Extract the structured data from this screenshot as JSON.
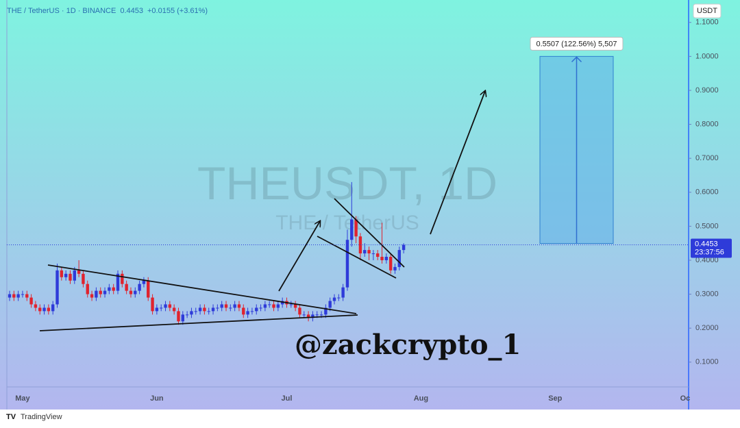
{
  "chart_data": {
    "type": "candlestick",
    "title": "THE / TetherUS · 1D · BINANCE",
    "last_price": 0.4453,
    "change": "+0.0155 (+3.61%)",
    "currency": "USDT",
    "countdown": "23:37:56",
    "watermark_title": "THEUSDT, 1D",
    "watermark_subtitle": "THE / TetherUS",
    "annotation": "@zackcrypto_1",
    "brand": "TradingView",
    "up_color": "#2e3bd9",
    "down_color": "#e0232e",
    "measure": {
      "low": 0.4493,
      "high": 1.0,
      "label": "0.5507 (122.56%) 5,507"
    },
    "ylim": [
      0.027,
      1.166
    ],
    "yticks": [
      {
        "value": 0.1,
        "label": "0.1000"
      },
      {
        "value": 0.2,
        "label": "0.2000"
      },
      {
        "value": 0.3,
        "label": "0.3000"
      },
      {
        "value": 0.4,
        "label": "0.4000"
      },
      {
        "value": 0.5,
        "label": "0.5000"
      },
      {
        "value": 0.6,
        "label": "0.6000"
      },
      {
        "value": 0.7,
        "label": "0.7000"
      },
      {
        "value": 0.8,
        "label": "0.8000"
      },
      {
        "value": 0.9,
        "label": "0.9000"
      },
      {
        "value": 1.0,
        "label": "1.0000"
      },
      {
        "value": 1.1,
        "label": "1.1000"
      }
    ],
    "categories": [
      null,
      null,
      null,
      "May",
      null,
      null,
      null,
      null,
      null,
      null,
      null,
      null,
      null,
      null,
      null,
      null,
      null,
      null,
      null,
      null,
      null,
      null,
      null,
      null,
      null,
      null,
      null,
      null,
      null,
      null,
      null,
      null,
      null,
      null,
      "Jun",
      null,
      null,
      null,
      null,
      null,
      null,
      null,
      null,
      null,
      null,
      null,
      null,
      null,
      null,
      null,
      null,
      null,
      null,
      null,
      null,
      null,
      null,
      null,
      null,
      null,
      null,
      null,
      null,
      null,
      "Jul",
      null,
      null,
      null,
      null,
      null,
      null,
      null,
      null,
      null,
      null,
      null,
      null,
      null,
      null,
      null,
      null,
      null,
      null,
      null,
      null,
      null,
      null,
      null,
      null,
      null,
      null,
      null,
      null,
      null,
      null,
      "Aug",
      null,
      null,
      null,
      null,
      null,
      null,
      null,
      null,
      null,
      null,
      null,
      null,
      null,
      null,
      null,
      null,
      null,
      null,
      null,
      null,
      null,
      null,
      null,
      null,
      null,
      null,
      null,
      null,
      null,
      null,
      "Sep",
      null,
      null,
      null,
      null,
      null,
      null,
      null,
      null,
      null,
      null,
      null,
      null,
      null,
      null,
      null,
      null,
      null,
      null,
      null,
      null,
      null,
      null,
      null,
      null,
      null,
      null,
      null,
      null,
      null,
      "Oc"
    ],
    "open": [
      0.29,
      0.3,
      0.29,
      0.3,
      0.3,
      0.29,
      0.27,
      0.26,
      0.25,
      0.26,
      0.25,
      0.27,
      0.37,
      0.35,
      0.36,
      0.34,
      0.37,
      0.36,
      0.33,
      0.3,
      0.29,
      0.31,
      0.3,
      0.31,
      0.32,
      0.31,
      0.36,
      0.33,
      0.31,
      0.3,
      0.31,
      0.33,
      0.34,
      0.29,
      0.25,
      0.26,
      0.26,
      0.27,
      0.26,
      0.25,
      0.22,
      0.24,
      0.24,
      0.25,
      0.25,
      0.26,
      0.25,
      0.25,
      0.26,
      0.26,
      0.27,
      0.26,
      0.26,
      0.27,
      0.26,
      0.24,
      0.25,
      0.25,
      0.26,
      0.26,
      0.27,
      0.27,
      0.26,
      0.27,
      0.28,
      0.27,
      0.27,
      0.26,
      0.24,
      0.24,
      0.23,
      0.24,
      0.24,
      0.24,
      0.26,
      0.28,
      0.29,
      0.29,
      0.32,
      0.46,
      0.52,
      0.47,
      0.42,
      0.43,
      0.42,
      0.42,
      0.41,
      0.4,
      0.41,
      0.37,
      0.38,
      0.43,
      null,
      null,
      null,
      null,
      null,
      null,
      null,
      null,
      null,
      null,
      null,
      null,
      null,
      null,
      null,
      null,
      null,
      null,
      null,
      null,
      null,
      null,
      null,
      null,
      null,
      null,
      null,
      null,
      null,
      null,
      null,
      null,
      null,
      null,
      null,
      null,
      null,
      null,
      null,
      null,
      null,
      null,
      null,
      null,
      null,
      null,
      null,
      null,
      null,
      null,
      null,
      null,
      null,
      null,
      null,
      null,
      null,
      null,
      null,
      null,
      null,
      null,
      null,
      null,
      null
    ],
    "high": [
      0.31,
      0.31,
      0.31,
      0.31,
      0.31,
      0.3,
      0.28,
      0.27,
      0.27,
      0.27,
      0.28,
      0.39,
      0.38,
      0.37,
      0.37,
      0.38,
      0.4,
      0.37,
      0.34,
      0.31,
      0.32,
      0.32,
      0.32,
      0.33,
      0.33,
      0.37,
      0.37,
      0.34,
      0.32,
      0.32,
      0.34,
      0.35,
      0.35,
      0.3,
      0.27,
      0.27,
      0.28,
      0.28,
      0.27,
      0.26,
      0.25,
      0.25,
      0.26,
      0.26,
      0.27,
      0.27,
      0.26,
      0.27,
      0.27,
      0.28,
      0.28,
      0.27,
      0.28,
      0.28,
      0.27,
      0.26,
      0.26,
      0.27,
      0.27,
      0.28,
      0.28,
      0.28,
      0.28,
      0.29,
      0.29,
      0.28,
      0.28,
      0.27,
      0.25,
      0.25,
      0.25,
      0.25,
      0.25,
      0.27,
      0.29,
      0.3,
      0.3,
      0.33,
      0.49,
      0.63,
      0.53,
      0.48,
      0.45,
      0.44,
      0.43,
      0.43,
      0.51,
      0.42,
      0.42,
      0.39,
      0.44,
      0.45,
      null,
      null,
      null,
      null,
      null,
      null,
      null,
      null,
      null,
      null,
      null,
      null,
      null,
      null,
      null,
      null,
      null,
      null,
      null,
      null,
      null,
      null,
      null,
      null,
      null,
      null,
      null,
      null,
      null,
      null,
      null,
      null,
      null,
      null,
      null,
      null,
      null,
      null,
      null,
      null,
      null,
      null,
      null,
      null,
      null,
      null,
      null,
      null,
      null,
      null,
      null,
      null,
      null,
      null,
      null,
      null,
      null,
      null,
      null,
      null,
      null,
      null,
      null,
      null,
      null
    ],
    "low": [
      0.28,
      0.28,
      0.28,
      0.29,
      0.28,
      0.26,
      0.25,
      0.24,
      0.24,
      0.24,
      0.24,
      0.26,
      0.34,
      0.34,
      0.33,
      0.33,
      0.35,
      0.32,
      0.29,
      0.28,
      0.28,
      0.29,
      0.29,
      0.3,
      0.3,
      0.3,
      0.32,
      0.3,
      0.29,
      0.29,
      0.3,
      0.32,
      0.28,
      0.24,
      0.24,
      0.25,
      0.25,
      0.25,
      0.24,
      0.21,
      0.21,
      0.23,
      0.23,
      0.24,
      0.24,
      0.24,
      0.24,
      0.24,
      0.25,
      0.25,
      0.25,
      0.25,
      0.25,
      0.25,
      0.23,
      0.23,
      0.24,
      0.24,
      0.25,
      0.25,
      0.26,
      0.25,
      0.25,
      0.26,
      0.26,
      0.26,
      0.25,
      0.23,
      0.23,
      0.22,
      0.22,
      0.23,
      0.23,
      0.23,
      0.25,
      0.27,
      0.28,
      0.28,
      0.31,
      0.44,
      0.45,
      0.4,
      0.41,
      0.4,
      0.4,
      0.4,
      0.39,
      0.39,
      0.36,
      0.36,
      0.37,
      0.42,
      null,
      null,
      null,
      null,
      null,
      null,
      null,
      null,
      null,
      null,
      null,
      null,
      null,
      null,
      null,
      null,
      null,
      null,
      null,
      null,
      null,
      null,
      null,
      null,
      null,
      null,
      null,
      null,
      null,
      null,
      null,
      null,
      null,
      null,
      null,
      null,
      null,
      null,
      null,
      null,
      null,
      null,
      null,
      null,
      null,
      null,
      null,
      null,
      null,
      null,
      null,
      null,
      null,
      null,
      null,
      null,
      null,
      null,
      null,
      null,
      null,
      null,
      null,
      null,
      null
    ],
    "close": [
      0.3,
      0.29,
      0.3,
      0.3,
      0.29,
      0.27,
      0.26,
      0.25,
      0.26,
      0.25,
      0.27,
      0.37,
      0.35,
      0.36,
      0.34,
      0.37,
      0.36,
      0.33,
      0.3,
      0.29,
      0.31,
      0.3,
      0.31,
      0.32,
      0.31,
      0.36,
      0.33,
      0.31,
      0.3,
      0.31,
      0.33,
      0.34,
      0.29,
      0.25,
      0.26,
      0.26,
      0.27,
      0.26,
      0.25,
      0.22,
      0.24,
      0.24,
      0.25,
      0.25,
      0.26,
      0.25,
      0.25,
      0.26,
      0.26,
      0.27,
      0.26,
      0.26,
      0.27,
      0.26,
      0.24,
      0.25,
      0.25,
      0.26,
      0.26,
      0.27,
      0.27,
      0.26,
      0.27,
      0.28,
      0.27,
      0.27,
      0.26,
      0.24,
      0.24,
      0.23,
      0.24,
      0.24,
      0.24,
      0.26,
      0.28,
      0.29,
      0.29,
      0.32,
      0.46,
      0.52,
      0.47,
      0.42,
      0.43,
      0.42,
      0.42,
      0.41,
      0.4,
      0.41,
      0.37,
      0.38,
      0.43,
      0.4453,
      null,
      null,
      null,
      null,
      null,
      null,
      null,
      null,
      null,
      null,
      null,
      null,
      null,
      null,
      null,
      null,
      null,
      null,
      null,
      null,
      null,
      null,
      null,
      null,
      null,
      null,
      null,
      null,
      null,
      null,
      null,
      null,
      null,
      null,
      null,
      null,
      null,
      null,
      null,
      null,
      null,
      null,
      null,
      null,
      null,
      null,
      null,
      null,
      null,
      null,
      null,
      null,
      null,
      null,
      null,
      null,
      null,
      null,
      null,
      null,
      null,
      null,
      null,
      null,
      null
    ]
  }
}
